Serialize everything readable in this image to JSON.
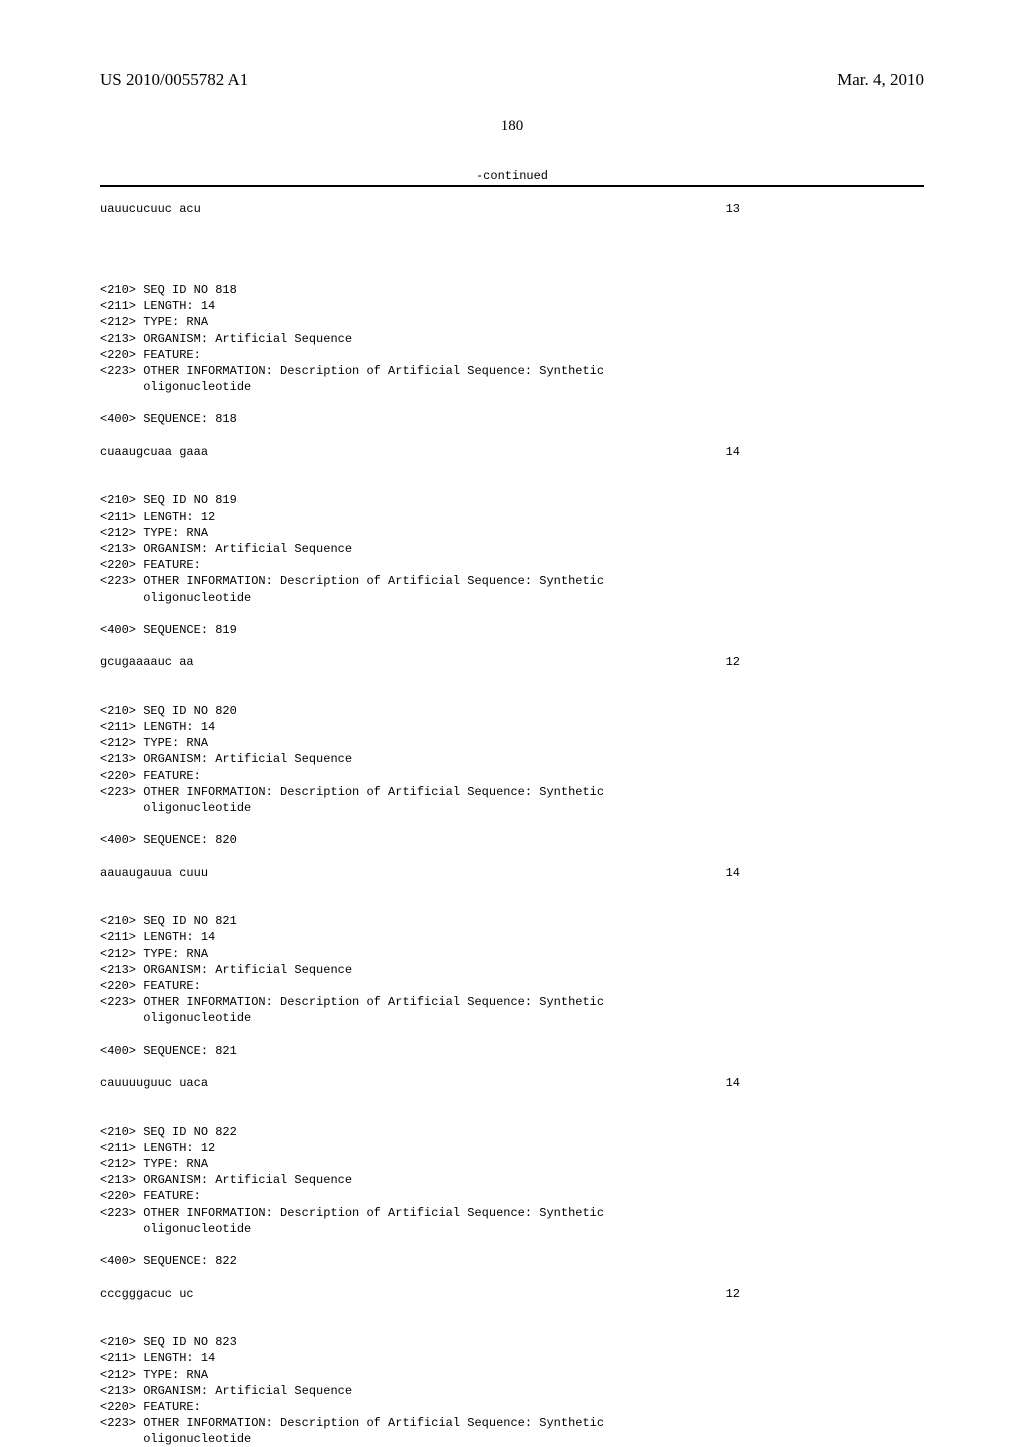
{
  "header": {
    "doc_number": "US 2010/0055782 A1",
    "date": "Mar. 4, 2010"
  },
  "page_number": "180",
  "continued_label": "-continued",
  "seq_first": {
    "sequence": "uauucucuuc acu",
    "length_num": "13"
  },
  "entries": [
    {
      "id": "818",
      "length": "14",
      "type": "RNA",
      "organism": "Artificial Sequence",
      "other_info": "Description of Artificial Sequence: Synthetic",
      "other_info_cont": "oligonucleotide",
      "seq_label": "818",
      "sequence": "cuaaugcuaa gaaa",
      "seq_len": "14"
    },
    {
      "id": "819",
      "length": "12",
      "type": "RNA",
      "organism": "Artificial Sequence",
      "other_info": "Description of Artificial Sequence: Synthetic",
      "other_info_cont": "oligonucleotide",
      "seq_label": "819",
      "sequence": "gcugaaaauc aa",
      "seq_len": "12"
    },
    {
      "id": "820",
      "length": "14",
      "type": "RNA",
      "organism": "Artificial Sequence",
      "other_info": "Description of Artificial Sequence: Synthetic",
      "other_info_cont": "oligonucleotide",
      "seq_label": "820",
      "sequence": "aauaugauua cuuu",
      "seq_len": "14"
    },
    {
      "id": "821",
      "length": "14",
      "type": "RNA",
      "organism": "Artificial Sequence",
      "other_info": "Description of Artificial Sequence: Synthetic",
      "other_info_cont": "oligonucleotide",
      "seq_label": "821",
      "sequence": "cauuuuguuc uaca",
      "seq_len": "14"
    },
    {
      "id": "822",
      "length": "12",
      "type": "RNA",
      "organism": "Artificial Sequence",
      "other_info": "Description of Artificial Sequence: Synthetic",
      "other_info_cont": "oligonucleotide",
      "seq_label": "822",
      "sequence": "cccgggacuc uc",
      "seq_len": "12"
    },
    {
      "id": "823",
      "length": "14",
      "type": "RNA",
      "organism": "Artificial Sequence",
      "other_info": "Description of Artificial Sequence: Synthetic",
      "other_info_cont": "oligonucleotide",
      "seq_label": "",
      "sequence": "",
      "seq_len": ""
    }
  ],
  "labels": {
    "seq_id": "<210> SEQ ID NO ",
    "length": "<211> LENGTH: ",
    "type": "<212> TYPE: ",
    "organism": "<213> ORGANISM: ",
    "feature": "<220> FEATURE:",
    "other": "<223> OTHER INFORMATION: ",
    "sequence": "<400> SEQUENCE: "
  }
}
